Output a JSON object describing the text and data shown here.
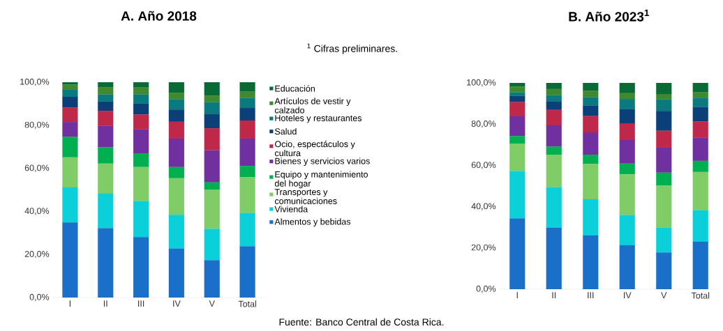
{
  "chart_data": [
    {
      "type": "bar",
      "title": "A. Año 2018",
      "stacked": true,
      "legend": "right",
      "categories": [
        "I",
        "II",
        "III",
        "IV",
        "V",
        "Total"
      ],
      "ylim": [
        0,
        100
      ],
      "yticks": [
        {
          "value": 0,
          "label": "0,0%"
        },
        {
          "value": 20,
          "label": "20,0%"
        },
        {
          "value": 40,
          "label": "40,0%"
        },
        {
          "value": 60,
          "label": "60,0%"
        },
        {
          "value": 80,
          "label": "80,0%"
        },
        {
          "value": 100,
          "label": "100,0%"
        }
      ],
      "annotations": [
        "Fuente: Banco Central de Costa Rica."
      ],
      "series": [
        {
          "name": "Almentos y bebidas",
          "color": "#1a6fc8",
          "values": [
            34.9,
            32.2,
            28.1,
            22.7,
            17.3,
            23.8
          ]
        },
        {
          "name": "Vivienda",
          "color": "#0bd0d9",
          "values": [
            16.2,
            16.0,
            16.7,
            15.7,
            14.6,
            15.4
          ]
        },
        {
          "name": "Transportes y comunicaciones",
          "color": "#80cc66",
          "values": [
            14.0,
            14.0,
            15.8,
            17.0,
            18.1,
            16.7
          ]
        },
        {
          "name": "Equipo y mantenimiento del hogar",
          "color": "#00b050",
          "values": [
            9.5,
            7.6,
            6.4,
            5.2,
            3.5,
            5.2
          ]
        },
        {
          "name": "Bienes y servicios varios",
          "color": "#7030a0",
          "values": [
            6.9,
            9.9,
            11.1,
            13.2,
            14.9,
            12.7
          ]
        },
        {
          "name": "Ocio, espectáculos y cultura",
          "color": "#c0284a",
          "values": [
            6.8,
            7.0,
            6.9,
            7.8,
            10.2,
            8.4
          ]
        },
        {
          "name": "Salud",
          "color": "#0b3f78",
          "values": [
            4.9,
            4.3,
            5.0,
            5.7,
            6.7,
            5.8
          ]
        },
        {
          "name": "Hoteles y restaurantes",
          "color": "#0b7a7e",
          "values": [
            3.5,
            3.3,
            4.3,
            4.8,
            5.4,
            4.7
          ]
        },
        {
          "name": "Artículos de vestir y calzado",
          "color": "#3f8a2e",
          "values": [
            2.2,
            3.4,
            3.2,
            2.9,
            3.0,
            2.9
          ]
        },
        {
          "name": "Educación",
          "color": "#0a6a35",
          "values": [
            1.1,
            2.3,
            2.5,
            5.0,
            6.3,
            4.4
          ]
        }
      ]
    },
    {
      "type": "bar",
      "title": "B. Año 2023$^{1}$",
      "stacked": true,
      "categories": [
        "I",
        "II",
        "III",
        "IV",
        "V",
        "Total"
      ],
      "ylim": [
        0,
        100
      ],
      "yticks": [
        {
          "value": 0,
          "label": "0,0%"
        },
        {
          "value": 20,
          "label": "20,0%"
        },
        {
          "value": 40,
          "label": "40,0%"
        },
        {
          "value": 60,
          "label": "60,0%"
        },
        {
          "value": 80,
          "label": "80,0%"
        },
        {
          "value": 100,
          "label": "100,0%"
        }
      ],
      "annotations": [
        "$^{1}$ Cifras preliminares."
      ],
      "series": [
        {
          "color": "#1a6fc8",
          "values": [
            34.3,
            29.8,
            26.1,
            21.3,
            17.7,
            23.0
          ]
        },
        {
          "color": "#0bd0d9",
          "values": [
            23.0,
            19.6,
            17.5,
            14.6,
            12.1,
            15.3
          ]
        },
        {
          "color": "#80cc66",
          "values": [
            13.3,
            15.8,
            17.1,
            19.8,
            20.4,
            18.5
          ]
        },
        {
          "color": "#00b050",
          "values": [
            3.6,
            3.9,
            4.5,
            5.2,
            6.3,
            5.4
          ]
        },
        {
          "color": "#7030a0",
          "values": [
            9.6,
            10.3,
            10.8,
            11.4,
            12.1,
            11.2
          ]
        },
        {
          "color": "#c0284a",
          "values": [
            6.9,
            7.5,
            7.9,
            8.1,
            8.2,
            7.9
          ]
        },
        {
          "color": "#0b3f78",
          "values": [
            3.0,
            4.2,
            5.1,
            6.8,
            9.6,
            7.0
          ]
        },
        {
          "color": "#0b7a7e",
          "values": [
            1.7,
            3.0,
            4.1,
            5.0,
            5.6,
            4.5
          ]
        },
        {
          "color": "#3f8a2e",
          "values": [
            2.8,
            2.9,
            3.1,
            2.8,
            2.6,
            2.6
          ]
        },
        {
          "color": "#0a6a35",
          "values": [
            1.8,
            3.0,
            3.8,
            5.0,
            5.4,
            4.6
          ]
        }
      ]
    }
  ]
}
